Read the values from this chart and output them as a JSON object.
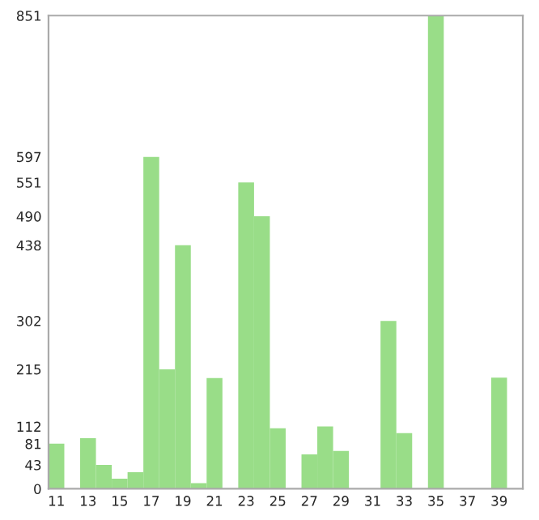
{
  "chart_data": {
    "type": "bar",
    "categories": [
      "11",
      null,
      "13",
      null,
      "15",
      null,
      "17",
      null,
      "19",
      null,
      "21",
      null,
      "23",
      null,
      "25",
      null,
      "27",
      null,
      "29",
      null,
      "31",
      null,
      "33",
      null,
      "35",
      null,
      "37",
      null,
      "39",
      null
    ],
    "values": [
      81,
      0,
      91,
      43,
      18,
      30,
      597,
      215,
      438,
      10,
      199,
      0,
      551,
      490,
      109,
      0,
      62,
      112,
      68,
      0,
      0,
      302,
      100,
      0,
      851,
      0,
      0,
      0,
      200,
      0
    ],
    "color": "#99dd88",
    "ylim": [
      0,
      851
    ],
    "yticks": [
      0,
      43,
      81,
      112,
      215,
      302,
      438,
      490,
      551,
      597,
      851
    ],
    "grid": false
  }
}
